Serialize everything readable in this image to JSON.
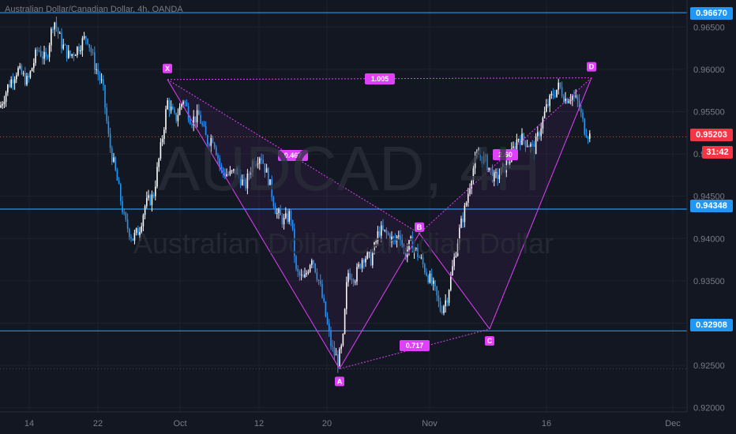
{
  "header": {
    "symbol_title": "Australian Dollar/Canadian Dollar, 4h, OANDA"
  },
  "watermark": {
    "symbol": "AUDCAD, 4H",
    "name": "Australian Dollar/Canadian Dollar"
  },
  "colors": {
    "background": "#131722",
    "up": "#ffffff",
    "down": "#2196f3",
    "pattern": "#e040fb",
    "level": "#2196f3",
    "current": "#f23645",
    "grid": "#1e222d"
  },
  "badges": {
    "high_level": "0.96670",
    "current_price": "0.95203",
    "countdown": "31:42",
    "mid_level": "0.94348",
    "low_level": "0.92908"
  },
  "chart_data": {
    "type": "candlestick",
    "title": "Australian Dollar/Canadian Dollar, 4h, OANDA",
    "ylim": [
      0.9195,
      0.9682
    ],
    "y_ticks": [
      "0.96500",
      "0.96000",
      "0.95500",
      "0.95000",
      "0.94500",
      "0.94000",
      "0.93500",
      "0.93000",
      "0.92500",
      "0.92000"
    ],
    "x_ticks": [
      "14",
      "22",
      "Oct",
      "12",
      "20",
      "Nov",
      "16",
      "Dec"
    ],
    "horizontal_levels": [
      0.9667,
      0.94348,
      0.92908
    ],
    "current_price": 0.95203,
    "price_path": [
      [
        0,
        0.9555
      ],
      [
        10,
        0.958
      ],
      [
        22,
        0.96
      ],
      [
        35,
        0.9585
      ],
      [
        48,
        0.9625
      ],
      [
        58,
        0.961
      ],
      [
        68,
        0.966
      ],
      [
        78,
        0.963
      ],
      [
        88,
        0.9615
      ],
      [
        98,
        0.9625
      ],
      [
        110,
        0.964
      ],
      [
        120,
        0.9605
      ],
      [
        130,
        0.958
      ],
      [
        138,
        0.9515
      ],
      [
        148,
        0.947
      ],
      [
        158,
        0.942
      ],
      [
        168,
        0.94
      ],
      [
        176,
        0.941
      ],
      [
        184,
        0.944
      ],
      [
        194,
        0.945
      ],
      [
        204,
        0.951
      ],
      [
        212,
        0.9562
      ],
      [
        222,
        0.954
      ],
      [
        232,
        0.9565
      ],
      [
        242,
        0.954
      ],
      [
        252,
        0.9545
      ],
      [
        262,
        0.9515
      ],
      [
        270,
        0.952
      ],
      [
        280,
        0.948
      ],
      [
        290,
        0.9475
      ],
      [
        300,
        0.948
      ],
      [
        310,
        0.946
      ],
      [
        320,
        0.949
      ],
      [
        330,
        0.95
      ],
      [
        340,
        0.947
      ],
      [
        350,
        0.943
      ],
      [
        360,
        0.942
      ],
      [
        368,
        0.943
      ],
      [
        375,
        0.936
      ],
      [
        385,
        0.935
      ],
      [
        395,
        0.938
      ],
      [
        405,
        0.9345
      ],
      [
        412,
        0.931
      ],
      [
        420,
        0.927
      ],
      [
        428,
        0.9255
      ],
      [
        434,
        0.9275
      ],
      [
        440,
        0.936
      ],
      [
        450,
        0.9355
      ],
      [
        460,
        0.938
      ],
      [
        470,
        0.9375
      ],
      [
        480,
        0.941
      ],
      [
        490,
        0.9405
      ],
      [
        500,
        0.9395
      ],
      [
        506,
        0.941
      ],
      [
        512,
        0.938
      ],
      [
        520,
        0.9395
      ],
      [
        530,
        0.938
      ],
      [
        540,
        0.936
      ],
      [
        550,
        0.934
      ],
      [
        558,
        0.9315
      ],
      [
        566,
        0.933
      ],
      [
        574,
        0.937
      ],
      [
        582,
        0.941
      ],
      [
        590,
        0.944
      ],
      [
        598,
        0.948
      ],
      [
        606,
        0.95
      ],
      [
        616,
        0.949
      ],
      [
        626,
        0.947
      ],
      [
        636,
        0.948
      ],
      [
        646,
        0.9495
      ],
      [
        656,
        0.952
      ],
      [
        666,
        0.9515
      ],
      [
        676,
        0.9505
      ],
      [
        684,
        0.953
      ],
      [
        692,
        0.9555
      ],
      [
        700,
        0.957
      ],
      [
        708,
        0.958
      ],
      [
        716,
        0.9565
      ],
      [
        724,
        0.957
      ],
      [
        732,
        0.956
      ],
      [
        740,
        0.953
      ],
      [
        748,
        0.952
      ]
    ],
    "pattern": {
      "points": [
        {
          "label": "X",
          "price": 0.9588
        },
        {
          "label": "A",
          "price": 0.9246
        },
        {
          "label": "B",
          "price": 0.9406
        },
        {
          "label": "C",
          "price": 0.9293
        },
        {
          "label": "D",
          "price": 0.959
        }
      ],
      "ratios": [
        {
          "label": "0.467",
          "between": "X-B"
        },
        {
          "label": "0.717",
          "between": "A-C"
        },
        {
          "label": "2.60",
          "between": "B-D"
        },
        {
          "label": "1.005",
          "between": "X-D"
        }
      ]
    }
  }
}
